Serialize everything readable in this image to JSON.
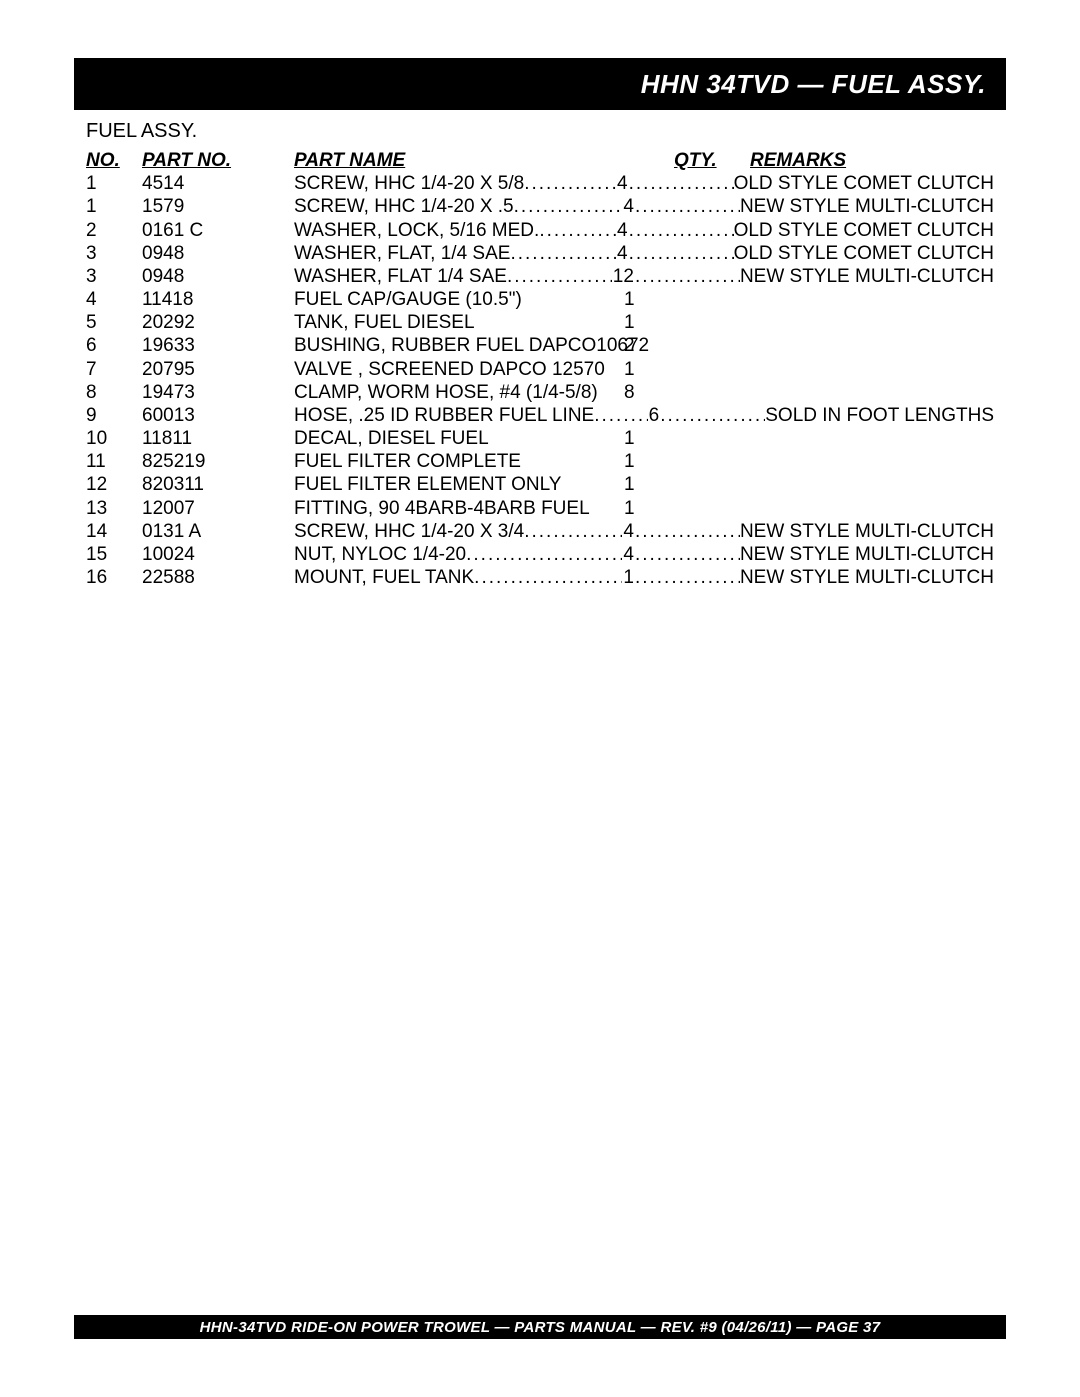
{
  "title": "HHN 34TVD — FUEL ASSY.",
  "subtitle": "FUEL ASSY.",
  "headers": {
    "no": "NO.",
    "partno": "PART NO.",
    "partname": "PART NAME",
    "qty": "QTY.",
    "remarks": "REMARKS"
  },
  "rows": [
    {
      "no": "1",
      "partno": "4514",
      "name": "SCREW, HHC 1/4-20 X 5/8",
      "qty": "4",
      "remarks": "OLD STYLE COMET CLUTCH",
      "dotted": true
    },
    {
      "no": "1",
      "partno": "1579",
      "name": "SCREW, HHC 1/4-20 X .5",
      "qty": "4",
      "remarks": "NEW STYLE MULTI-CLUTCH",
      "dotted": true
    },
    {
      "no": "2",
      "partno": "0161 C",
      "name": "WASHER, LOCK, 5/16 MED.",
      "qty": "4",
      "remarks": "OLD STYLE COMET CLUTCH",
      "dotted": true
    },
    {
      "no": "3",
      "partno": "0948",
      "name": "WASHER, FLAT, 1/4 SAE",
      "qty": "4",
      "remarks": "OLD STYLE COMET CLUTCH",
      "dotted": true
    },
    {
      "no": "3",
      "partno": "0948",
      "name": "WASHER, FLAT 1/4 SAE",
      "qty": "12",
      "remarks": "NEW STYLE MULTI-CLUTCH",
      "dotted": true
    },
    {
      "no": "4",
      "partno": "11418",
      "name": "FUEL CAP/GAUGE (10.5\")",
      "qty": "1",
      "remarks": "",
      "dotted": false
    },
    {
      "no": "5",
      "partno": "20292",
      "name": "TANK, FUEL DIESEL",
      "qty": "1",
      "remarks": "",
      "dotted": false
    },
    {
      "no": "6",
      "partno": "19633",
      "name": "BUSHING, RUBBER FUEL DAPCO10672",
      "qty": "2",
      "remarks": "",
      "dotted": false
    },
    {
      "no": "7",
      "partno": "20795",
      "name": "VALVE , SCREENED DAPCO 12570",
      "qty": "1",
      "remarks": "",
      "dotted": false
    },
    {
      "no": "8",
      "partno": "19473",
      "name": "CLAMP, WORM HOSE, #4 (1/4-5/8)",
      "qty": "8",
      "remarks": "",
      "dotted": false
    },
    {
      "no": "9",
      "partno": "60013",
      "name": "HOSE, .25 ID RUBBER FUEL LINE",
      "qty": "6",
      "remarks": "SOLD IN FOOT LENGTHS",
      "dotted": true
    },
    {
      "no": "10",
      "partno": "11811",
      "name": "DECAL, DIESEL FUEL",
      "qty": "1",
      "remarks": "",
      "dotted": false
    },
    {
      "no": "11",
      "partno": "825219",
      "name": "FUEL FILTER COMPLETE",
      "qty": "1",
      "remarks": "",
      "dotted": false
    },
    {
      "no": "12",
      "partno": "820311",
      "name": "FUEL FILTER ELEMENT ONLY",
      "qty": "1",
      "remarks": "",
      "dotted": false
    },
    {
      "no": "13",
      "partno": "12007",
      "name": "FITTING, 90 4BARB-4BARB FUEL",
      "qty": "1",
      "remarks": "",
      "dotted": false
    },
    {
      "no": "14",
      "partno": "0131 A",
      "name": "SCREW, HHC 1/4-20 X 3/4",
      "qty": "4",
      "remarks": "NEW STYLE MULTI-CLUTCH",
      "dotted": true
    },
    {
      "no": "15",
      "partno": "10024",
      "name": "NUT, NYLOC 1/4-20",
      "qty": "4",
      "remarks": "NEW STYLE MULTI-CLUTCH",
      "dotted": true
    },
    {
      "no": "16",
      "partno": "22588",
      "name": "MOUNT, FUEL TANK",
      "qty": "1",
      "remarks": "NEW STYLE MULTI-CLUTCH",
      "dotted": true
    }
  ],
  "footer": "HHN-34TVD   RIDE-ON POWER TROWEL — PARTS MANUAL — REV. #9 (04/26/11) — PAGE 37",
  "dots": "......................................................................................................"
}
